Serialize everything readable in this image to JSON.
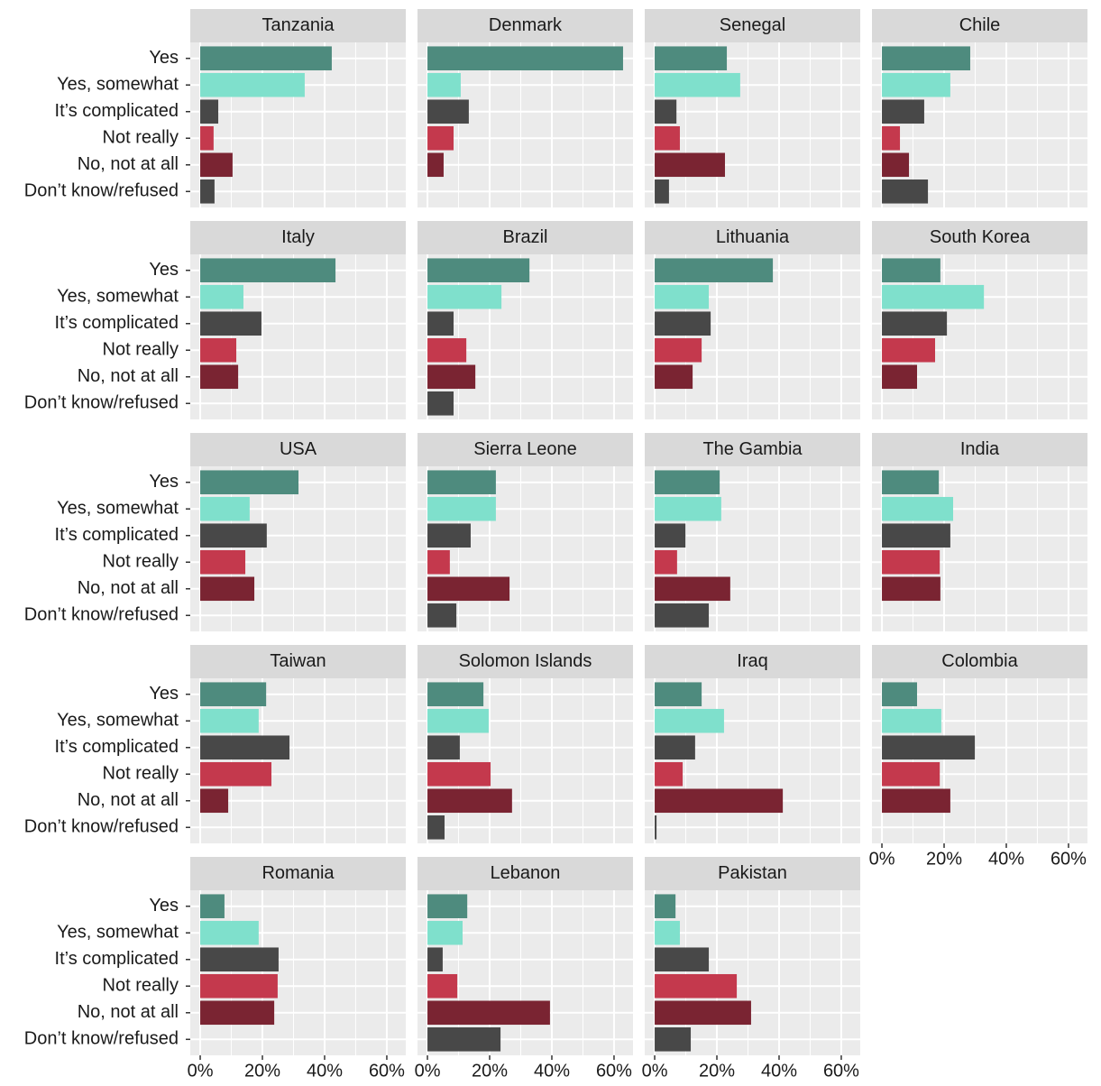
{
  "chart_data": {
    "type": "bar",
    "orientation": "horizontal",
    "categories": [
      "Yes",
      "Yes, somewhat",
      "It’s complicated",
      "Not really",
      "No, not at all",
      "Don’t know/refused"
    ],
    "colors": [
      "#4e8b7e",
      "#7fe0cc",
      "#484848",
      "#c4394d",
      "#7a2432",
      "#484848"
    ],
    "panels": [
      {
        "name": "Tanzania",
        "values": [
          42.3,
          33.6,
          5.8,
          4.3,
          10.4,
          4.6
        ]
      },
      {
        "name": "Denmark",
        "values": [
          62.9,
          10.7,
          13.3,
          8.4,
          5.2,
          null
        ]
      },
      {
        "name": "Senegal",
        "values": [
          23.2,
          27.5,
          7.0,
          8.1,
          22.6,
          4.6
        ]
      },
      {
        "name": "Chile",
        "values": [
          28.4,
          22.0,
          13.6,
          5.8,
          8.7,
          14.8
        ]
      },
      {
        "name": "Italy",
        "values": [
          43.5,
          13.9,
          19.7,
          11.6,
          12.2,
          null
        ]
      },
      {
        "name": "Brazil",
        "values": [
          32.8,
          23.8,
          8.4,
          12.5,
          15.4,
          8.4
        ]
      },
      {
        "name": "Lithuania",
        "values": [
          38.0,
          17.4,
          18.0,
          15.1,
          12.2,
          null
        ]
      },
      {
        "name": "South Korea",
        "values": [
          18.8,
          32.8,
          20.9,
          17.1,
          11.3,
          null
        ]
      },
      {
        "name": "USA",
        "values": [
          31.6,
          15.9,
          21.4,
          14.5,
          17.4,
          null
        ]
      },
      {
        "name": "Sierra Leone",
        "values": [
          22.0,
          22.0,
          13.9,
          7.2,
          26.4,
          9.3
        ]
      },
      {
        "name": "The Gambia",
        "values": [
          20.9,
          21.4,
          9.9,
          7.2,
          24.3,
          17.4
        ]
      },
      {
        "name": "India",
        "values": [
          18.3,
          22.9,
          22.0,
          18.6,
          18.8,
          null
        ]
      },
      {
        "name": "Taiwan",
        "values": [
          21.2,
          18.8,
          28.7,
          22.9,
          9.0,
          null
        ]
      },
      {
        "name": "Solomon Islands",
        "values": [
          18.0,
          19.7,
          10.4,
          20.3,
          27.2,
          5.5
        ]
      },
      {
        "name": "Iraq",
        "values": [
          15.1,
          22.3,
          13.0,
          9.0,
          41.2,
          0.6
        ]
      },
      {
        "name": "Colombia",
        "values": [
          11.3,
          19.1,
          29.9,
          18.6,
          22.0,
          null
        ]
      },
      {
        "name": "Romania",
        "values": [
          7.8,
          18.8,
          25.2,
          24.9,
          23.8,
          null
        ]
      },
      {
        "name": "Lebanon",
        "values": [
          12.8,
          11.3,
          4.9,
          9.6,
          39.4,
          23.5
        ]
      },
      {
        "name": "Pakistan",
        "values": [
          6.7,
          8.1,
          17.4,
          26.4,
          31.0,
          11.6
        ]
      }
    ],
    "xlim": [
      -3.2,
      66.1
    ],
    "xticks": [
      {
        "value": 0,
        "label": "0%"
      },
      {
        "value": 20,
        "label": "20%"
      },
      {
        "value": 40,
        "label": "40%"
      },
      {
        "value": 60,
        "label": "60%"
      }
    ],
    "minor_xticks": [
      10,
      30,
      50
    ],
    "grid": true
  }
}
